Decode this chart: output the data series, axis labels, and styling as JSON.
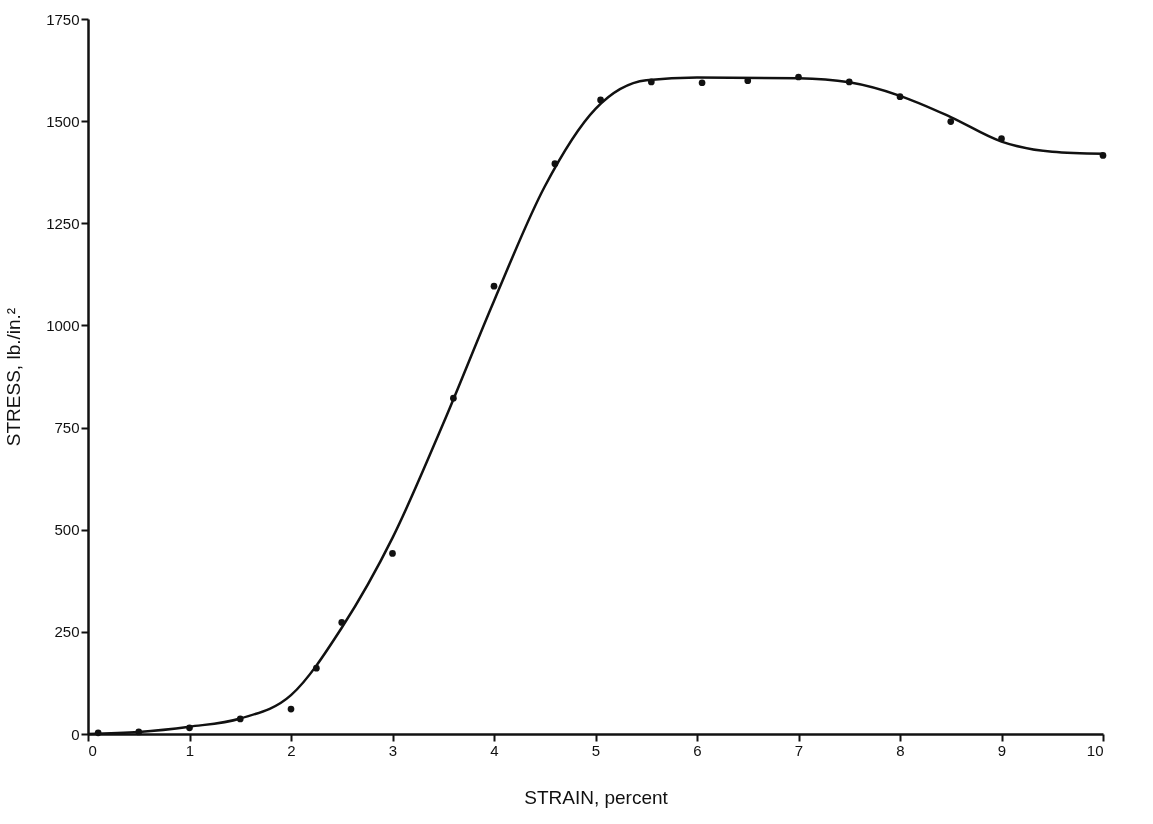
{
  "chart_data": {
    "type": "scatter",
    "xlabel": "STRAIN,  percent",
    "ylabel": "STRESS,  lb./in.²",
    "xlim": [
      0,
      10
    ],
    "ylim": [
      0,
      1750
    ],
    "xticks": [
      0,
      1,
      2,
      3,
      4,
      5,
      6,
      7,
      8,
      9,
      10
    ],
    "yticks": [
      0,
      250,
      500,
      750,
      1000,
      1250,
      1500,
      1750
    ],
    "grid": false,
    "series": [
      {
        "color": "#111111",
        "marker": "circle",
        "x": [
          0.1,
          0.5,
          1,
          1.5,
          2,
          2.25,
          2.5,
          3,
          3.6,
          4,
          4.6,
          5.05,
          5.55,
          6.05,
          6.5,
          7,
          7.5,
          8,
          8.5,
          9,
          10
        ],
        "values": [
          3,
          5,
          15,
          37,
          61,
          161,
          273,
          442,
          822,
          1096,
          1396,
          1552,
          1596,
          1594,
          1599,
          1608,
          1596,
          1560,
          1499,
          1457,
          1416
        ]
      },
      {
        "type": "line",
        "color": "#111111",
        "marker": "none",
        "line_style": "solid",
        "x": [
          0,
          0.5,
          1,
          1.5,
          2,
          2.5,
          3,
          3.5,
          4,
          4.5,
          5,
          5.5,
          6,
          7,
          7.5,
          8,
          8.5,
          9,
          9.5,
          10
        ],
        "values": [
          0,
          5,
          18,
          38,
          95,
          260,
          480,
          760,
          1060,
          1340,
          1530,
          1600,
          1607,
          1605,
          1595,
          1562,
          1510,
          1450,
          1425,
          1420
        ]
      }
    ]
  }
}
